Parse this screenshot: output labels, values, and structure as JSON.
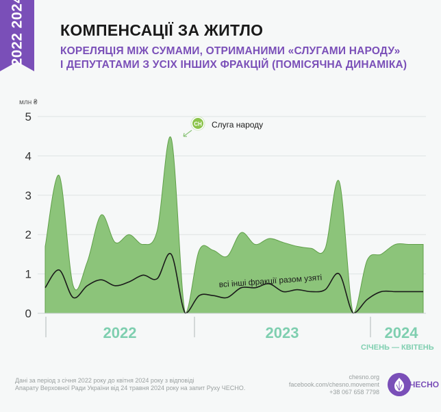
{
  "badge": {
    "years": "2022 2024"
  },
  "header": {
    "title": "КОМПЕНСАЦІЇ ЗА ЖИТЛО",
    "subtitle_line1": "КОРЕЛЯЦІЯ МІЖ СУМАМИ, ОТРИМАНИМИ «СЛУГАМИ НАРОДУ»",
    "subtitle_line2": "І ДЕПУТАТАМИ З УСІХ ІНШИХ ФРАКЦІЙ (ПОМІСЯЧНА ДИНАМІКА)"
  },
  "colors": {
    "accent_purple": "#7a4fb8",
    "area_green": "#8cc47a",
    "area_stroke": "#5f9f48",
    "year_label": "#7fcfb0",
    "line_black": "#1a1a1a",
    "badge_sn": "#8bc34a"
  },
  "chart_data": {
    "type": "area",
    "ylabel": "млн ₴",
    "ylim": [
      0,
      5
    ],
    "yticks": [
      0,
      1,
      2,
      3,
      4,
      5
    ],
    "x": [
      "2022-01",
      "2022-02",
      "2022-03",
      "2022-04",
      "2022-05",
      "2022-06",
      "2022-07",
      "2022-08",
      "2022-09",
      "2022-10",
      "2022-11",
      "2022-12",
      "2023-01",
      "2023-02",
      "2023-03",
      "2023-04",
      "2023-05",
      "2023-06",
      "2023-07",
      "2023-08",
      "2023-09",
      "2023-10",
      "2023-11",
      "2023-12",
      "2024-01",
      "2024-02",
      "2024-03",
      "2024-04"
    ],
    "series": [
      {
        "name": "Слуга народу",
        "badge": "СН",
        "style": "area",
        "values": [
          1.7,
          3.5,
          0.7,
          1.3,
          2.5,
          1.8,
          2.0,
          1.75,
          2.1,
          4.45,
          0.0,
          1.6,
          1.6,
          1.45,
          2.05,
          1.75,
          1.9,
          1.8,
          1.7,
          1.65,
          1.65,
          3.35,
          0.0,
          1.35,
          1.5,
          1.75,
          1.75,
          1.75
        ]
      },
      {
        "name": "всі інші фракції разом узяті",
        "style": "line",
        "values": [
          0.65,
          1.1,
          0.4,
          0.7,
          0.85,
          0.7,
          0.8,
          0.97,
          0.88,
          1.5,
          0.0,
          0.45,
          0.45,
          0.4,
          0.65,
          0.65,
          0.75,
          0.55,
          0.6,
          0.55,
          0.6,
          1.0,
          0.0,
          0.35,
          0.55,
          0.55,
          0.55,
          0.55
        ]
      }
    ],
    "year_labels": [
      "2022",
      "2023",
      "2024"
    ],
    "period_note": "СІЧЕНЬ — КВІТЕНЬ"
  },
  "footer": {
    "source_line1": "Дані за період з січня 2022 року до квітня 2024 року з відповіді",
    "source_line2": "Апарату Верховної Ради України від 24 травня 2024 року на запит Руху ЧЕСНО.",
    "site": "chesno.org",
    "facebook": "facebook.com/chesno.movement",
    "phone": "+38 067 658 7798",
    "org": "ЧЕСНО"
  }
}
